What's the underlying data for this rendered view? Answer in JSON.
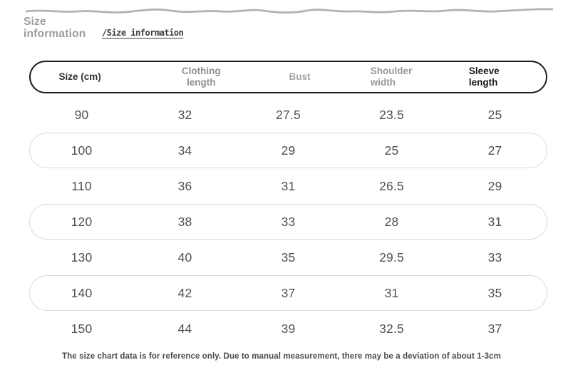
{
  "page": {
    "heading": {
      "line1": "Size",
      "line2": "information"
    },
    "subheading": "/Size information",
    "footnote": "The size chart data is for reference only. Due to manual measurement, there may be a deviation of about 1-3cm"
  },
  "size_table": {
    "columns": [
      "Size (cm)",
      "Clothing length",
      "Bust",
      "Shoulder width",
      "Sleeve length"
    ],
    "rows": [
      [
        "90",
        "32",
        "27.5",
        "23.5",
        "25"
      ],
      [
        "100",
        "34",
        "29",
        "25",
        "27"
      ],
      [
        "110",
        "36",
        "31",
        "26.5",
        "29"
      ],
      [
        "120",
        "38",
        "33",
        "28",
        "31"
      ],
      [
        "130",
        "40",
        "35",
        "29.5",
        "33"
      ],
      [
        "140",
        "42",
        "37",
        "31",
        "35"
      ],
      [
        "150",
        "44",
        "39",
        "32.5",
        "37"
      ]
    ]
  },
  "colors": {
    "header_border": "#1b1c1e",
    "row_border": "#d9d9d9",
    "heading_gray": "#9b9b9b",
    "header_muted_text": "#97979b",
    "cell_text": "#515151",
    "wave_line": "#b4b1b1"
  }
}
